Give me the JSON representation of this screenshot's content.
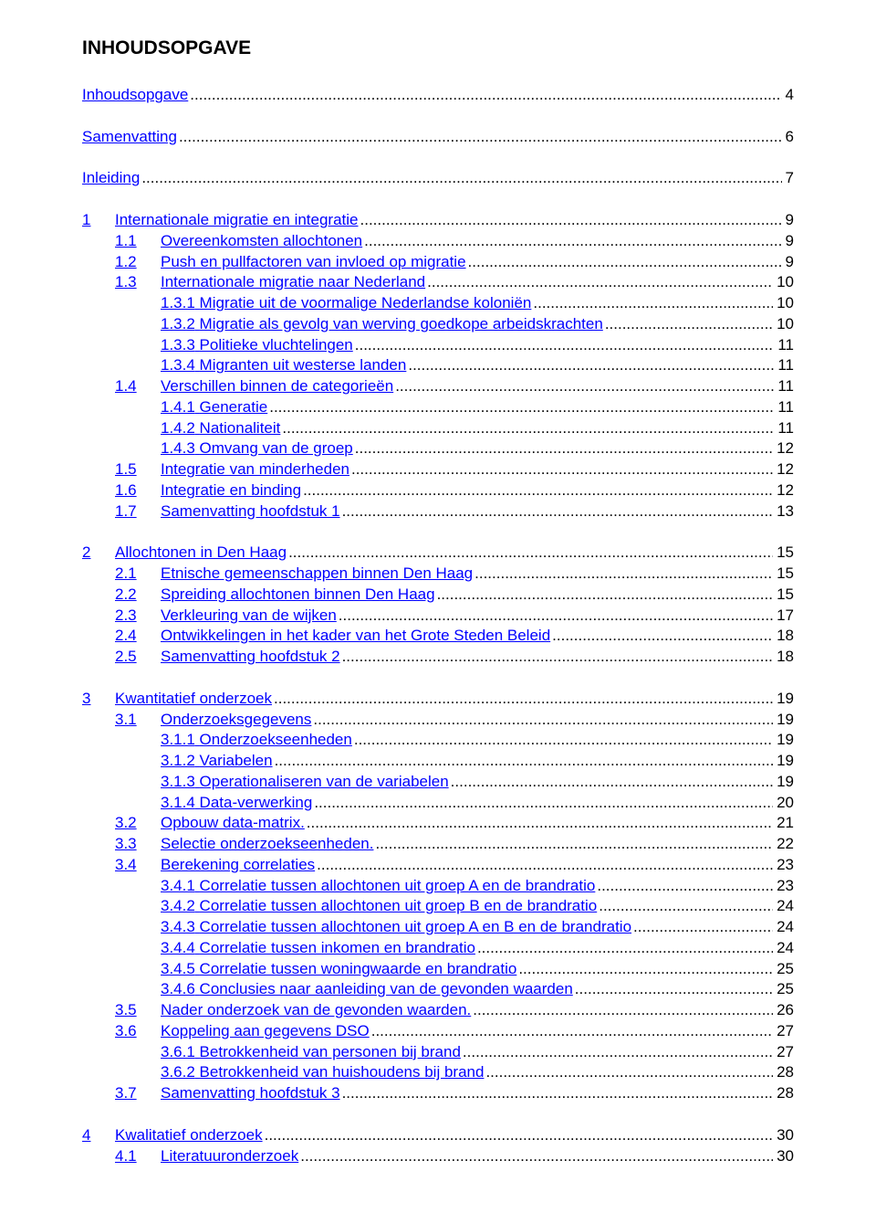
{
  "title": "INHOUDSOPGAVE",
  "link_color": "#0000ff",
  "text_color": "#000000",
  "background_color": "#ffffff",
  "font_size_body": 17,
  "font_size_title": 21,
  "toc": [
    {
      "type": "top",
      "label": "Inhoudsopgave",
      "page": "4"
    },
    {
      "type": "spacer"
    },
    {
      "type": "top",
      "label": "Samenvatting",
      "page": "6"
    },
    {
      "type": "spacer"
    },
    {
      "type": "top",
      "label": "Inleiding",
      "page": "7"
    },
    {
      "type": "spacer"
    },
    {
      "type": "chapter",
      "num": "1",
      "label": "Internationale migratie en integratie",
      "page": "9"
    },
    {
      "type": "section",
      "num": "1.1",
      "label": "Overeenkomsten allochtonen",
      "page": "9"
    },
    {
      "type": "section",
      "num": "1.2",
      "label": "Push en pullfactoren van invloed op migratie",
      "page": "9"
    },
    {
      "type": "section",
      "num": "1.3",
      "label": "Internationale migratie naar Nederland",
      "page": "10"
    },
    {
      "type": "subsection",
      "num": "1.3.1",
      "label": "Migratie uit de voormalige Nederlandse koloniën",
      "page": "10"
    },
    {
      "type": "subsection",
      "num": "1.3.2",
      "label": "Migratie als gevolg van werving goedkope arbeidskrachten",
      "page": "10"
    },
    {
      "type": "subsection",
      "num": "1.3.3",
      "label": "Politieke vluchtelingen",
      "page": "11"
    },
    {
      "type": "subsection",
      "num": "1.3.4",
      "label": "Migranten uit westerse landen",
      "page": "11"
    },
    {
      "type": "section",
      "num": "1.4",
      "label": "Verschillen binnen de categorieën",
      "page": "11"
    },
    {
      "type": "subsection",
      "num": "1.4.1",
      "label": "Generatie",
      "page": "11"
    },
    {
      "type": "subsection",
      "num": "1.4.2",
      "label": "Nationaliteit",
      "page": "11"
    },
    {
      "type": "subsection",
      "num": "1.4.3",
      "label": "Omvang van de groep",
      "page": "12"
    },
    {
      "type": "section",
      "num": "1.5",
      "label": "Integratie van minderheden",
      "page": "12"
    },
    {
      "type": "section",
      "num": "1.6",
      "label": "Integratie en binding",
      "page": "12"
    },
    {
      "type": "section",
      "num": "1.7",
      "label": "Samenvatting hoofdstuk 1",
      "page": "13"
    },
    {
      "type": "spacer"
    },
    {
      "type": "chapter",
      "num": "2",
      "label": "Allochtonen in Den Haag",
      "page": "15"
    },
    {
      "type": "section",
      "num": "2.1",
      "label": "Etnische gemeenschappen binnen Den Haag",
      "page": "15"
    },
    {
      "type": "section",
      "num": "2.2",
      "label": "Spreiding allochtonen binnen Den Haag",
      "page": "15"
    },
    {
      "type": "section",
      "num": "2.3",
      "label": "Verkleuring van de wijken",
      "page": "17"
    },
    {
      "type": "section",
      "num": "2.4",
      "label": "Ontwikkelingen in het kader van het Grote Steden Beleid",
      "page": "18"
    },
    {
      "type": "section",
      "num": "2.5",
      "label": "Samenvatting hoofdstuk 2",
      "page": "18"
    },
    {
      "type": "spacer"
    },
    {
      "type": "chapter",
      "num": "3",
      "label": "Kwantitatief onderzoek",
      "page": "19"
    },
    {
      "type": "section",
      "num": "3.1",
      "label": "Onderzoeksgegevens",
      "page": "19"
    },
    {
      "type": "subsection",
      "num": "3.1.1",
      "label": "Onderzoekseenheden",
      "page": "19"
    },
    {
      "type": "subsection",
      "num": "3.1.2",
      "label": "Variabelen",
      "page": "19"
    },
    {
      "type": "subsection",
      "num": "3.1.3",
      "label": "Operationaliseren van de variabelen",
      "page": "19"
    },
    {
      "type": "subsection",
      "num": "3.1.4",
      "label": "Data-verwerking",
      "page": "20"
    },
    {
      "type": "section",
      "num": "3.2",
      "label": "Opbouw data-matrix.",
      "page": "21"
    },
    {
      "type": "section",
      "num": "3.3",
      "label": "Selectie onderzoekseenheden.",
      "page": "22"
    },
    {
      "type": "section",
      "num": "3.4",
      "label": "Berekening correlaties",
      "page": "23"
    },
    {
      "type": "subsection",
      "num": "3.4.1",
      "label": "Correlatie tussen allochtonen uit groep A en de brandratio",
      "page": "23"
    },
    {
      "type": "subsection",
      "num": "3.4.2",
      "label": "Correlatie tussen allochtonen uit groep B en de brandratio",
      "page": "24"
    },
    {
      "type": "subsection",
      "num": "3.4.3",
      "label": "Correlatie tussen allochtonen uit groep A en B en de brandratio",
      "page": "24"
    },
    {
      "type": "subsection",
      "num": "3.4.4",
      "label": "Correlatie tussen inkomen en brandratio",
      "page": "24"
    },
    {
      "type": "subsection",
      "num": "3.4.5",
      "label": "Correlatie tussen woningwaarde en brandratio",
      "page": "25"
    },
    {
      "type": "subsection",
      "num": "3.4.6",
      "label": "Conclusies naar aanleiding van de gevonden waarden",
      "page": "25"
    },
    {
      "type": "section",
      "num": "3.5",
      "label": "Nader onderzoek van de gevonden waarden.",
      "page": "26"
    },
    {
      "type": "section",
      "num": "3.6",
      "label": "Koppeling aan gegevens DSO",
      "page": "27"
    },
    {
      "type": "subsection",
      "num": "3.6.1",
      "label": "Betrokkenheid van personen bij brand",
      "page": "27"
    },
    {
      "type": "subsection",
      "num": "3.6.2",
      "label": "Betrokkenheid van huishoudens bij brand",
      "page": "28"
    },
    {
      "type": "section",
      "num": "3.7",
      "label": "Samenvatting hoofdstuk 3",
      "page": "28"
    },
    {
      "type": "spacer"
    },
    {
      "type": "chapter",
      "num": "4",
      "label": "Kwalitatief onderzoek",
      "page": "30"
    },
    {
      "type": "section",
      "num": "4.1",
      "label": "Literatuuronderzoek",
      "page": "30"
    }
  ]
}
